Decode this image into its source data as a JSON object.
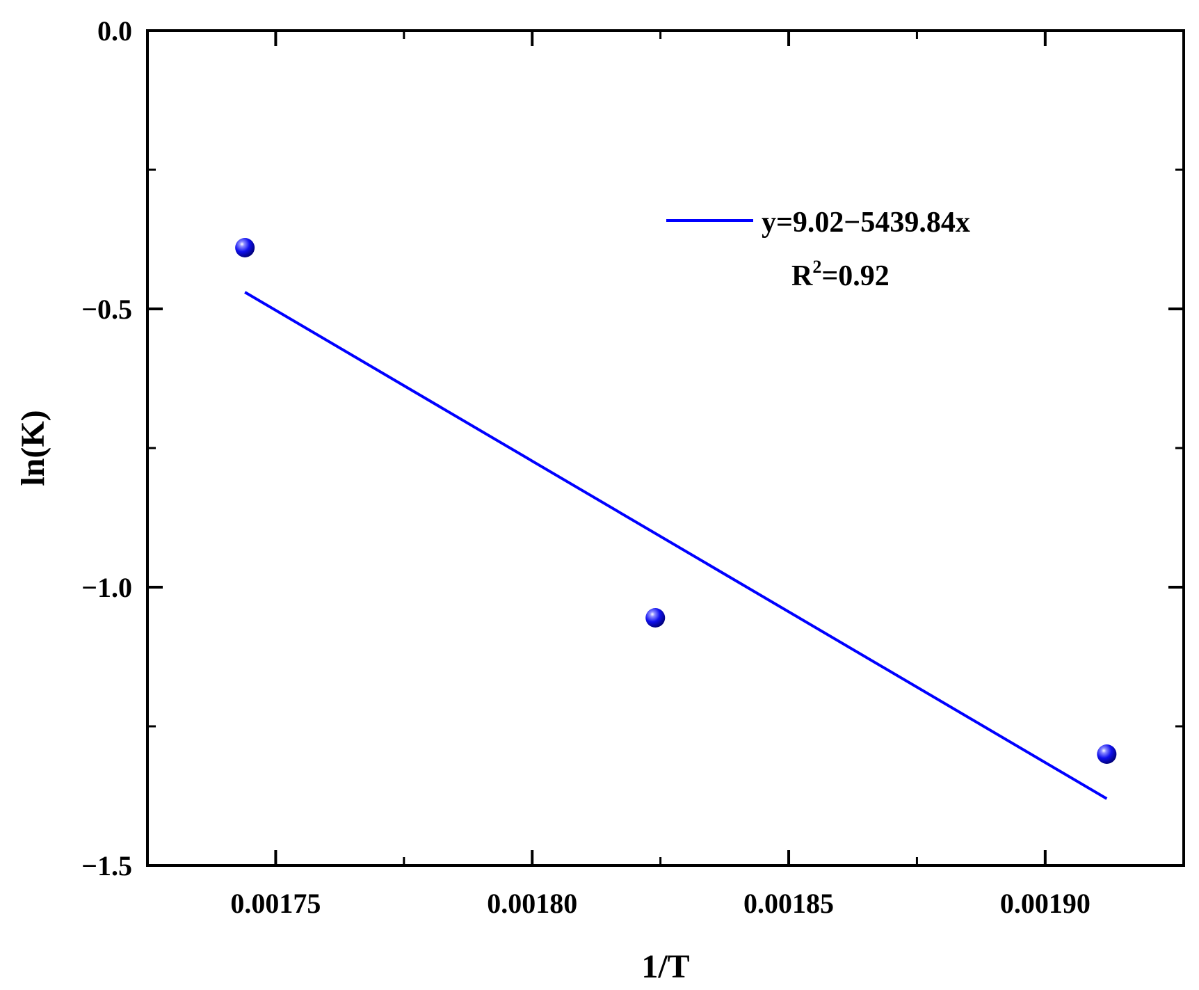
{
  "chart_data": {
    "type": "scatter",
    "title": "",
    "xlabel": "1/T",
    "ylabel": "ln(K)",
    "xlim": [
      0.001725,
      0.001927
    ],
    "ylim": [
      -1.5,
      0.0
    ],
    "x_tick_labels": [
      "0.00175",
      "0.00180",
      "0.00185",
      "0.00190"
    ],
    "x_tick_values": [
      0.00175,
      0.0018,
      0.00185,
      0.0019
    ],
    "x_minor_ticks": [
      0.001775,
      0.001825,
      0.001875
    ],
    "y_tick_labels": [
      "0.0",
      "−0.5",
      "−1.0",
      "−1.5"
    ],
    "y_tick_values": [
      0.0,
      -0.5,
      -1.0,
      -1.5
    ],
    "y_minor_ticks": [
      -0.25,
      -0.75,
      -1.25
    ],
    "grid": false,
    "series": [
      {
        "type": "scatter",
        "x": [
          0.001744,
          0.001824,
          0.001912
        ],
        "y": [
          -0.39,
          -1.055,
          -1.3
        ],
        "color": "#0000ff"
      },
      {
        "type": "line",
        "x": [
          0.001744,
          0.001912
        ],
        "y": [
          -0.47,
          -1.38
        ],
        "color": "#0000ff"
      }
    ],
    "legend": {
      "placement": "top-right",
      "equation": "y=9.02−5439.84x",
      "r2_prefix": "R",
      "r2_exponent": "2",
      "r2_value": "=0.92"
    }
  }
}
